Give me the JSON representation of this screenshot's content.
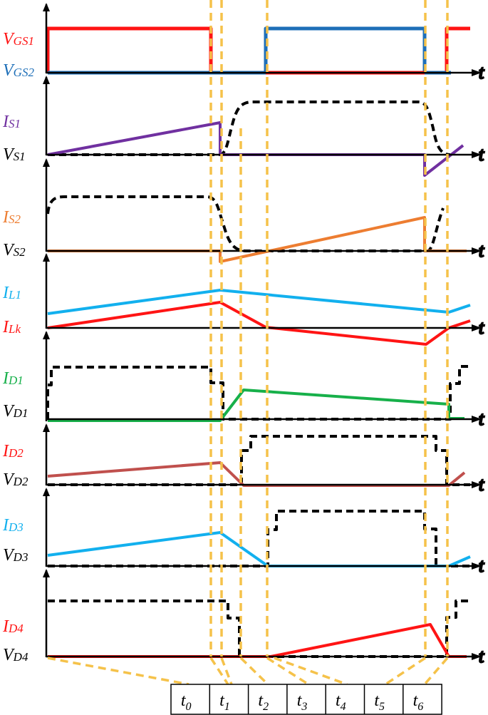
{
  "colors": {
    "red": "#ff1414",
    "blue": "#1e6fb8",
    "purple": "#7030a0",
    "orange": "#ed7d31",
    "lightblue": "#12b0ee",
    "green": "#17b04a",
    "brown": "#c0504d",
    "dashed_guides": "#f5c24a",
    "black": "#000000"
  },
  "time_axis_label": "t",
  "panels": [
    {
      "id": "vgs",
      "labels": [
        {
          "main": "V",
          "sub": "GS1",
          "color": "red"
        },
        {
          "main": "V",
          "sub": "GS2",
          "color": "blue"
        }
      ]
    },
    {
      "id": "s1",
      "labels": [
        {
          "main": "I",
          "sub": "S1",
          "color": "purple"
        },
        {
          "main": "V",
          "sub": "S1",
          "color": "black"
        }
      ]
    },
    {
      "id": "s2",
      "labels": [
        {
          "main": "I",
          "sub": "S2",
          "color": "orange"
        },
        {
          "main": "V",
          "sub": "S2",
          "color": "black"
        }
      ]
    },
    {
      "id": "l",
      "labels": [
        {
          "main": "I",
          "sub": "L1",
          "color": "lightblue"
        },
        {
          "main": "I",
          "sub": "Lk",
          "color": "red"
        }
      ]
    },
    {
      "id": "d1",
      "labels": [
        {
          "main": "I",
          "sub": "D1",
          "color": "green"
        },
        {
          "main": "V",
          "sub": "D1",
          "color": "black"
        }
      ]
    },
    {
      "id": "d2",
      "labels": [
        {
          "main": "I",
          "sub": "D2",
          "color": "red"
        },
        {
          "main": "V",
          "sub": "D2",
          "color": "black"
        }
      ]
    },
    {
      "id": "d3",
      "labels": [
        {
          "main": "I",
          "sub": "D3",
          "color": "lightblue"
        },
        {
          "main": "V",
          "sub": "D3",
          "color": "black"
        }
      ]
    },
    {
      "id": "d4",
      "labels": [
        {
          "main": "I",
          "sub": "D4",
          "color": "red"
        },
        {
          "main": "V",
          "sub": "D4",
          "color": "black"
        }
      ]
    }
  ],
  "time_instants": [
    {
      "main": "t",
      "sub": "0"
    },
    {
      "main": "t",
      "sub": "1"
    },
    {
      "main": "t",
      "sub": "2"
    },
    {
      "main": "t",
      "sub": "3"
    },
    {
      "main": "t",
      "sub": "4"
    },
    {
      "main": "t",
      "sub": "5"
    },
    {
      "main": "t",
      "sub": "6"
    }
  ]
}
